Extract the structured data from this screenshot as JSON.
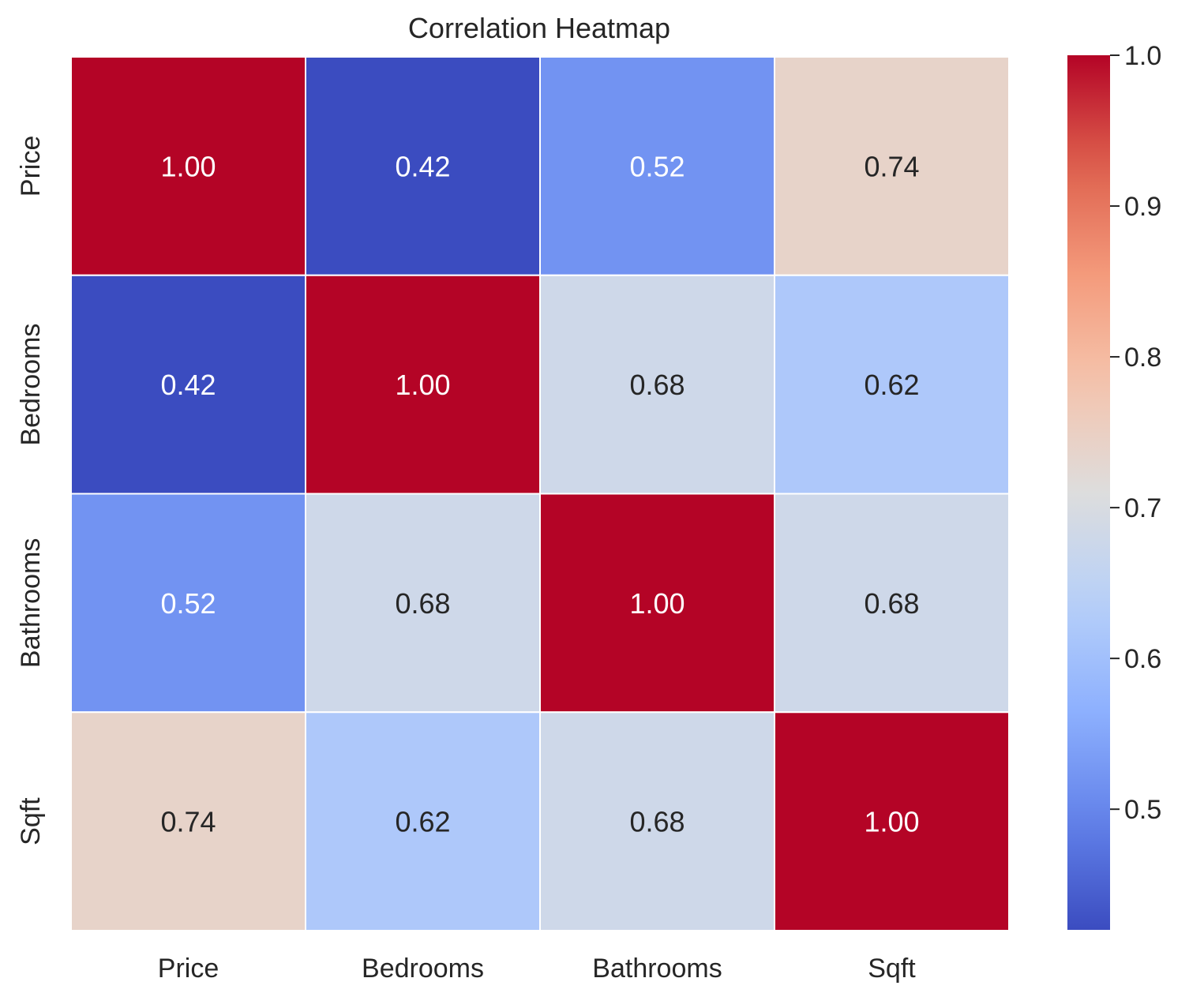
{
  "chart_data": {
    "type": "heatmap",
    "title": "Correlation Heatmap",
    "xlabel": "",
    "ylabel": "",
    "x_categories": [
      "Price",
      "Bedrooms",
      "Bathrooms",
      "Sqft"
    ],
    "y_categories": [
      "Price",
      "Bedrooms",
      "Bathrooms",
      "Sqft"
    ],
    "matrix": [
      [
        1.0,
        0.42,
        0.52,
        0.74
      ],
      [
        0.42,
        1.0,
        0.68,
        0.62
      ],
      [
        0.52,
        0.68,
        1.0,
        0.68
      ],
      [
        0.74,
        0.62,
        0.68,
        1.0
      ]
    ],
    "cell_labels": [
      [
        "1.00",
        "0.42",
        "0.52",
        "0.74"
      ],
      [
        "0.42",
        "1.00",
        "0.68",
        "0.62"
      ],
      [
        "0.52",
        "0.68",
        "1.00",
        "0.68"
      ],
      [
        "0.74",
        "0.62",
        "0.68",
        "1.00"
      ]
    ],
    "colormap": "coolwarm",
    "vmin": 0.42,
    "vmax": 1.0,
    "colorbar": {
      "ticks": [
        0.5,
        0.6,
        0.7,
        0.8,
        0.9,
        1.0
      ],
      "tick_labels": [
        "0.5",
        "0.6",
        "0.7",
        "0.8",
        "0.9",
        "1.0"
      ]
    },
    "grid": false
  }
}
